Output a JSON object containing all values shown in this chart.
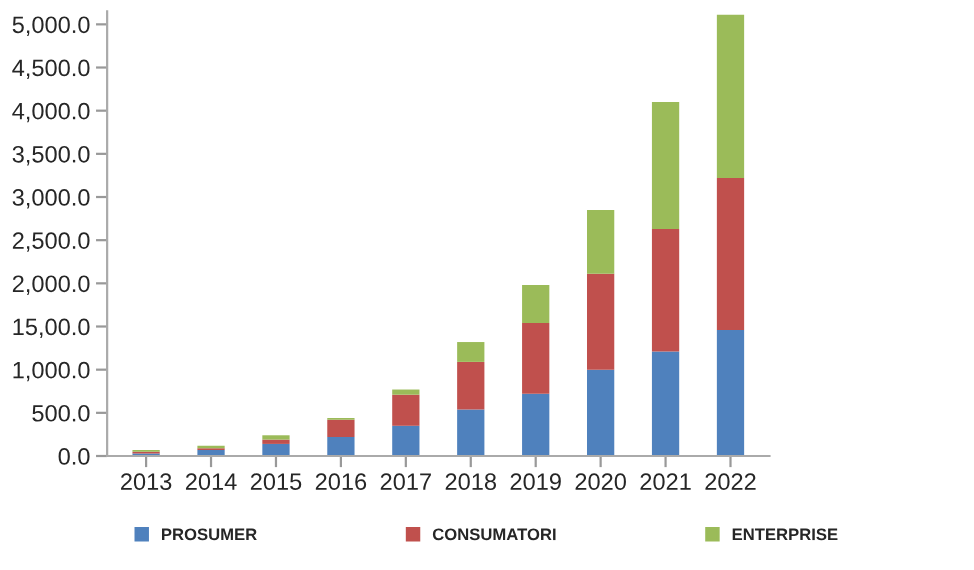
{
  "chart_data": {
    "type": "bar",
    "stacked": true,
    "categories": [
      "2013",
      "2014",
      "2015",
      "2016",
      "2017",
      "2018",
      "2019",
      "2020",
      "2021",
      "2022"
    ],
    "series": [
      {
        "name": "PROSUMER",
        "color": "#4f81bd",
        "values": [
          30,
          70,
          140,
          220,
          350,
          540,
          720,
          1000,
          1210,
          1460
        ]
      },
      {
        "name": "CONSUMATORI",
        "color": "#c0504d",
        "values": [
          20,
          20,
          50,
          200,
          360,
          550,
          820,
          1110,
          1420,
          1760
        ]
      },
      {
        "name": "ENTERPRISE",
        "color": "#9bbb59",
        "values": [
          20,
          30,
          50,
          20,
          60,
          230,
          440,
          740,
          1470,
          1890
        ]
      }
    ],
    "ylim": [
      0,
      5150
    ],
    "yticks": [
      {
        "value": 0,
        "label": "0.0"
      },
      {
        "value": 500,
        "label": "500.0"
      },
      {
        "value": 1000,
        "label": "1,000.0"
      },
      {
        "value": 1500,
        "label": "15,00.0"
      },
      {
        "value": 2000,
        "label": "2,000.0"
      },
      {
        "value": 2500,
        "label": "2,500.0"
      },
      {
        "value": 3000,
        "label": "3,000.0"
      },
      {
        "value": 3500,
        "label": "3,500.0"
      },
      {
        "value": 4000,
        "label": "4,000.0"
      },
      {
        "value": 4500,
        "label": "4,500.0"
      },
      {
        "value": 5000,
        "label": "5,000.0"
      }
    ],
    "grid": false,
    "legend": "bottom"
  }
}
